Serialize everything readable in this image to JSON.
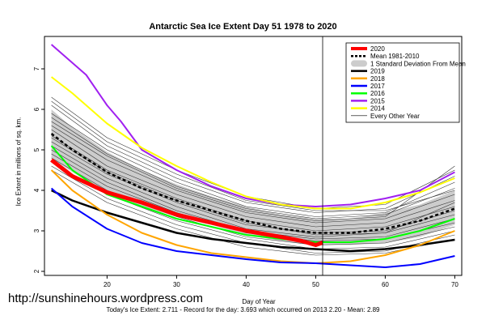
{
  "chart_data": {
    "type": "line",
    "title": "Antarctic Sea Ice Extent Day 51 1978 to 2020",
    "xlabel": "Day of Year",
    "ylabel": "Ice Extent in millions of sq. km.",
    "xlim": [
      11,
      71
    ],
    "ylim": [
      1.9,
      7.8
    ],
    "xticks": [
      20,
      30,
      40,
      50,
      60,
      70
    ],
    "yticks": [
      2,
      3,
      4,
      5,
      6,
      7
    ],
    "current_day": 51,
    "legend_position": "top-right",
    "legend": [
      {
        "label": "2020",
        "color": "#ff0000",
        "style": "solid-thick"
      },
      {
        "label": "Mean 1981-2010",
        "color": "#000000",
        "style": "dashed"
      },
      {
        "label": "1 Standard Deviation From Mean",
        "color": "#cccccc",
        "style": "band"
      },
      {
        "label": "2019",
        "color": "#000000",
        "style": "solid"
      },
      {
        "label": "2018",
        "color": "#ffa500",
        "style": "solid"
      },
      {
        "label": "2017",
        "color": "#0000ff",
        "style": "solid"
      },
      {
        "label": "2016",
        "color": "#00ff00",
        "style": "solid"
      },
      {
        "label": "2015",
        "color": "#a020f0",
        "style": "solid"
      },
      {
        "label": "2014",
        "color": "#ffff00",
        "style": "solid"
      },
      {
        "label": "Every Other Year",
        "color": "#000000",
        "style": "thin"
      }
    ],
    "mean": {
      "x": [
        12,
        15,
        20,
        25,
        30,
        35,
        40,
        45,
        50,
        55,
        60,
        65,
        70
      ],
      "y": [
        5.4,
        5.0,
        4.45,
        4.05,
        3.75,
        3.5,
        3.25,
        3.05,
        2.95,
        2.95,
        3.05,
        3.25,
        3.55
      ]
    },
    "std_band": {
      "x": [
        12,
        15,
        20,
        25,
        30,
        35,
        40,
        45,
        50,
        55,
        60,
        65,
        70
      ],
      "upper": [
        6.0,
        5.55,
        4.95,
        4.5,
        4.15,
        3.85,
        3.6,
        3.4,
        3.3,
        3.3,
        3.45,
        3.65,
        4.0
      ],
      "lower": [
        4.8,
        4.45,
        3.95,
        3.6,
        3.35,
        3.15,
        2.9,
        2.75,
        2.65,
        2.65,
        2.7,
        2.85,
        3.15
      ]
    },
    "series": [
      {
        "name": "2020",
        "color": "#ff0000",
        "width": 5,
        "x": [
          12,
          15,
          20,
          25,
          30,
          35,
          40,
          45,
          48,
          50,
          51
        ],
        "y": [
          4.75,
          4.35,
          3.95,
          3.7,
          3.4,
          3.2,
          3.0,
          2.85,
          2.75,
          2.65,
          2.71
        ]
      },
      {
        "name": "2019",
        "color": "#000000",
        "width": 2.5,
        "x": [
          12,
          15,
          20,
          25,
          30,
          35,
          40,
          45,
          50,
          55,
          60,
          65,
          70
        ],
        "y": [
          4.0,
          3.75,
          3.45,
          3.2,
          2.95,
          2.8,
          2.7,
          2.6,
          2.55,
          2.5,
          2.55,
          2.65,
          2.78
        ]
      },
      {
        "name": "2018",
        "color": "#ffa500",
        "width": 2,
        "x": [
          12,
          15,
          20,
          25,
          30,
          35,
          40,
          45,
          50,
          55,
          60,
          65,
          70
        ],
        "y": [
          4.5,
          4.0,
          3.4,
          2.95,
          2.65,
          2.45,
          2.35,
          2.25,
          2.2,
          2.25,
          2.4,
          2.65,
          3.0
        ]
      },
      {
        "name": "2017",
        "color": "#0000ff",
        "width": 2,
        "x": [
          12,
          15,
          20,
          25,
          30,
          35,
          40,
          45,
          50,
          55,
          60,
          65,
          70
        ],
        "y": [
          4.05,
          3.6,
          3.05,
          2.7,
          2.5,
          2.4,
          2.3,
          2.22,
          2.2,
          2.15,
          2.1,
          2.18,
          2.38
        ]
      },
      {
        "name": "2016",
        "color": "#00ff00",
        "width": 2,
        "x": [
          12,
          15,
          20,
          25,
          30,
          35,
          40,
          45,
          50,
          55,
          60,
          65,
          70
        ],
        "y": [
          5.1,
          4.5,
          3.9,
          3.6,
          3.3,
          3.1,
          2.9,
          2.8,
          2.72,
          2.72,
          2.8,
          3.0,
          3.3
        ]
      },
      {
        "name": "2015",
        "color": "#a020f0",
        "width": 2,
        "x": [
          12,
          15,
          17,
          20,
          22,
          25,
          30,
          35,
          40,
          45,
          50,
          55,
          60,
          65,
          70
        ],
        "y": [
          7.6,
          7.15,
          6.85,
          6.1,
          5.7,
          5.0,
          4.5,
          4.1,
          3.8,
          3.65,
          3.6,
          3.65,
          3.8,
          4.0,
          4.45
        ]
      },
      {
        "name": "2014",
        "color": "#ffff00",
        "width": 2,
        "x": [
          12,
          15,
          20,
          25,
          30,
          35,
          40,
          45,
          50,
          55,
          60,
          65,
          70
        ],
        "y": [
          6.8,
          6.4,
          5.65,
          5.05,
          4.6,
          4.2,
          3.85,
          3.65,
          3.55,
          3.55,
          3.7,
          3.95,
          4.3
        ]
      }
    ],
    "other_years": [
      {
        "x": [
          12,
          20,
          30,
          40,
          50,
          60,
          70
        ],
        "y": [
          6.3,
          5.3,
          4.5,
          3.85,
          3.55,
          3.65,
          4.5
        ]
      },
      {
        "x": [
          12,
          20,
          30,
          40,
          50,
          60,
          70
        ],
        "y": [
          6.1,
          5.1,
          4.3,
          3.7,
          3.45,
          3.55,
          4.35
        ]
      },
      {
        "x": [
          12,
          20,
          30,
          40,
          50,
          60,
          70
        ],
        "y": [
          5.9,
          5.0,
          4.2,
          3.6,
          3.35,
          3.45,
          4.2
        ]
      },
      {
        "x": [
          12,
          20,
          30,
          40,
          50,
          60,
          70
        ],
        "y": [
          5.8,
          4.9,
          4.1,
          3.55,
          3.3,
          3.4,
          4.05
        ]
      },
      {
        "x": [
          12,
          20,
          30,
          40,
          50,
          60,
          70
        ],
        "y": [
          5.6,
          4.75,
          4.0,
          3.45,
          3.2,
          3.3,
          3.9
        ]
      },
      {
        "x": [
          12,
          20,
          30,
          40,
          50,
          60,
          70
        ],
        "y": [
          5.5,
          4.6,
          3.9,
          3.35,
          3.1,
          3.2,
          3.75
        ]
      },
      {
        "x": [
          12,
          20,
          30,
          40,
          50,
          60,
          70
        ],
        "y": [
          5.35,
          4.5,
          3.8,
          3.25,
          3.0,
          3.1,
          3.6
        ]
      },
      {
        "x": [
          12,
          20,
          30,
          40,
          50,
          60,
          70
        ],
        "y": [
          5.2,
          4.4,
          3.7,
          3.15,
          2.95,
          3.0,
          3.5
        ]
      },
      {
        "x": [
          12,
          20,
          30,
          40,
          50,
          60,
          70
        ],
        "y": [
          5.1,
          4.3,
          3.6,
          3.05,
          2.85,
          2.95,
          3.4
        ]
      },
      {
        "x": [
          12,
          20,
          30,
          40,
          50,
          60,
          70
        ],
        "y": [
          5.0,
          4.2,
          3.5,
          3.0,
          2.8,
          2.85,
          3.3
        ]
      },
      {
        "x": [
          12,
          20,
          30,
          40,
          50,
          60,
          70
        ],
        "y": [
          4.9,
          4.1,
          3.45,
          2.95,
          2.75,
          2.8,
          3.2
        ]
      },
      {
        "x": [
          12,
          20,
          30,
          40,
          50,
          60,
          70
        ],
        "y": [
          4.8,
          4.0,
          3.35,
          2.85,
          2.65,
          2.7,
          3.1
        ]
      },
      {
        "x": [
          12,
          20,
          30,
          40,
          50,
          60,
          70
        ],
        "y": [
          4.7,
          3.9,
          3.25,
          2.8,
          2.55,
          2.6,
          3.0
        ]
      },
      {
        "x": [
          12,
          20,
          30,
          40,
          50,
          60,
          70
        ],
        "y": [
          4.6,
          3.8,
          3.15,
          2.7,
          2.45,
          2.5,
          2.9
        ]
      },
      {
        "x": [
          12,
          20,
          30,
          40,
          50,
          60,
          70
        ],
        "y": [
          4.5,
          3.7,
          3.05,
          2.6,
          2.4,
          2.45,
          2.8
        ]
      },
      {
        "x": [
          12,
          20,
          30,
          40,
          50,
          60,
          70
        ],
        "y": [
          5.7,
          4.85,
          4.05,
          3.5,
          3.25,
          3.35,
          4.6
        ]
      },
      {
        "x": [
          12,
          20,
          30,
          40,
          50,
          60,
          70
        ],
        "y": [
          6.2,
          5.2,
          4.4,
          3.75,
          3.5,
          3.5,
          4.0
        ]
      },
      {
        "x": [
          12,
          20,
          30,
          40,
          50,
          60,
          70
        ],
        "y": [
          5.3,
          4.45,
          3.75,
          3.2,
          2.9,
          2.95,
          3.7
        ]
      }
    ]
  },
  "footer": "Today's Ice Extent: 2.711  - Record for the day: 3.693 which occurred on 2013 2.20  - Mean: 2.89",
  "watermark": "http://sunshinehours.wordpress.com"
}
